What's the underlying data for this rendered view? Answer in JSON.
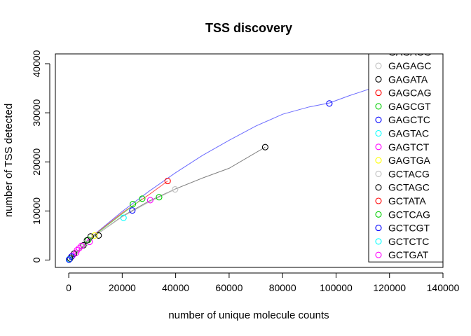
{
  "chart_data": {
    "type": "scatter",
    "title": "TSS discovery",
    "xlabel": "number of unique molecule counts",
    "ylabel": "number of TSS detected",
    "xlim": [
      -5000,
      140000
    ],
    "ylim": [
      -1500,
      42000
    ],
    "xticks": [
      0,
      20000,
      40000,
      60000,
      80000,
      100000,
      120000,
      140000
    ],
    "xtick_labels": [
      "0",
      "20000",
      "40000",
      "60000",
      "80000",
      "100000",
      "120000",
      "140000"
    ],
    "yticks": [
      0,
      10000,
      20000,
      30000,
      40000
    ],
    "ytick_labels": [
      "0",
      "10000",
      "20000",
      "30000",
      "40000"
    ],
    "grid": false,
    "legend_position": "right",
    "legend_partial_top_label": "GAGACG",
    "legend": [
      {
        "label": "GAGAGC",
        "color": "#bebebe"
      },
      {
        "label": "GAGATA",
        "color": "#000000"
      },
      {
        "label": "GAGCAG",
        "color": "#ff0000"
      },
      {
        "label": "GAGCGT",
        "color": "#00cd00"
      },
      {
        "label": "GAGCTC",
        "color": "#0000ff"
      },
      {
        "label": "GAGTAC",
        "color": "#00ffff"
      },
      {
        "label": "GAGTCT",
        "color": "#ff00ff"
      },
      {
        "label": "GAGTGA",
        "color": "#ffff00"
      },
      {
        "label": "GCTACG",
        "color": "#bebebe"
      },
      {
        "label": "GCTAGC",
        "color": "#000000"
      },
      {
        "label": "GCTATA",
        "color": "#ff0000"
      },
      {
        "label": "GCTCAG",
        "color": "#00cd00"
      },
      {
        "label": "GCTCGT",
        "color": "#0000ff"
      },
      {
        "label": "GCTCTC",
        "color": "#00ffff"
      },
      {
        "label": "GCTGAT",
        "color": "#ff00ff"
      }
    ],
    "curves": [
      {
        "color": "#6b6bff",
        "x": [
          0,
          10000,
          20000,
          30000,
          40000,
          50000,
          60000,
          70000,
          80000,
          90000,
          97500,
          105000,
          115000,
          120000
        ],
        "y": [
          0,
          5400,
          9900,
          14000,
          17800,
          21300,
          24400,
          27300,
          29700,
          31200,
          32000,
          33500,
          35300,
          36300
        ]
      },
      {
        "color": "#808080",
        "x": [
          0,
          10000,
          20000,
          30000,
          40000,
          50000,
          60000,
          73500
        ],
        "y": [
          0,
          5000,
          8900,
          12000,
          14500,
          16700,
          18700,
          23000
        ]
      },
      {
        "color": "#ff5050",
        "x": [
          0,
          10000,
          20000,
          30000,
          37000
        ],
        "y": [
          0,
          5300,
          9600,
          13300,
          16100
        ]
      },
      {
        "color": "#bebebe",
        "x": [
          0,
          10000,
          20000,
          30000,
          39800
        ],
        "y": [
          0,
          5000,
          8800,
          11800,
          14400
        ]
      },
      {
        "color": "#66dd66",
        "x": [
          0,
          10000,
          20000,
          27500
        ],
        "y": [
          0,
          5200,
          9400,
          12500
        ]
      }
    ],
    "points": [
      {
        "x": 97500,
        "y": 31900,
        "color": "#0000ff"
      },
      {
        "x": 73500,
        "y": 23000,
        "color": "#000000"
      },
      {
        "x": 39800,
        "y": 14400,
        "color": "#bebebe"
      },
      {
        "x": 37000,
        "y": 16100,
        "color": "#ff0000"
      },
      {
        "x": 33800,
        "y": 12800,
        "color": "#00cd00"
      },
      {
        "x": 30500,
        "y": 12200,
        "color": "#ff00ff"
      },
      {
        "x": 27500,
        "y": 12500,
        "color": "#00cd00"
      },
      {
        "x": 24000,
        "y": 11400,
        "color": "#00cd00"
      },
      {
        "x": 23800,
        "y": 10100,
        "color": "#0000ff"
      },
      {
        "x": 20500,
        "y": 8600,
        "color": "#00ffff"
      },
      {
        "x": 11200,
        "y": 5000,
        "color": "#000000"
      },
      {
        "x": 9700,
        "y": 5000,
        "color": "#ffff00"
      },
      {
        "x": 8200,
        "y": 4800,
        "color": "#000000"
      },
      {
        "x": 7800,
        "y": 3700,
        "color": "#ff00ff"
      },
      {
        "x": 7300,
        "y": 4100,
        "color": "#00cd00"
      },
      {
        "x": 6800,
        "y": 4000,
        "color": "#000000"
      },
      {
        "x": 6200,
        "y": 3400,
        "color": "#bebebe"
      },
      {
        "x": 5500,
        "y": 3000,
        "color": "#000000"
      },
      {
        "x": 4800,
        "y": 2900,
        "color": "#ff00ff"
      },
      {
        "x": 3900,
        "y": 2400,
        "color": "#ff00ff"
      },
      {
        "x": 3100,
        "y": 2000,
        "color": "#ff00ff"
      },
      {
        "x": 2800,
        "y": 1500,
        "color": "#ff00ff"
      },
      {
        "x": 2000,
        "y": 1300,
        "color": "#000000"
      },
      {
        "x": 1400,
        "y": 900,
        "color": "#ff00ff"
      },
      {
        "x": 1000,
        "y": 700,
        "color": "#0000ff"
      },
      {
        "x": 500,
        "y": 300,
        "color": "#000000"
      },
      {
        "x": 200,
        "y": 150,
        "color": "#00ffff"
      },
      {
        "x": 100,
        "y": 80,
        "color": "#0000ff"
      }
    ]
  }
}
